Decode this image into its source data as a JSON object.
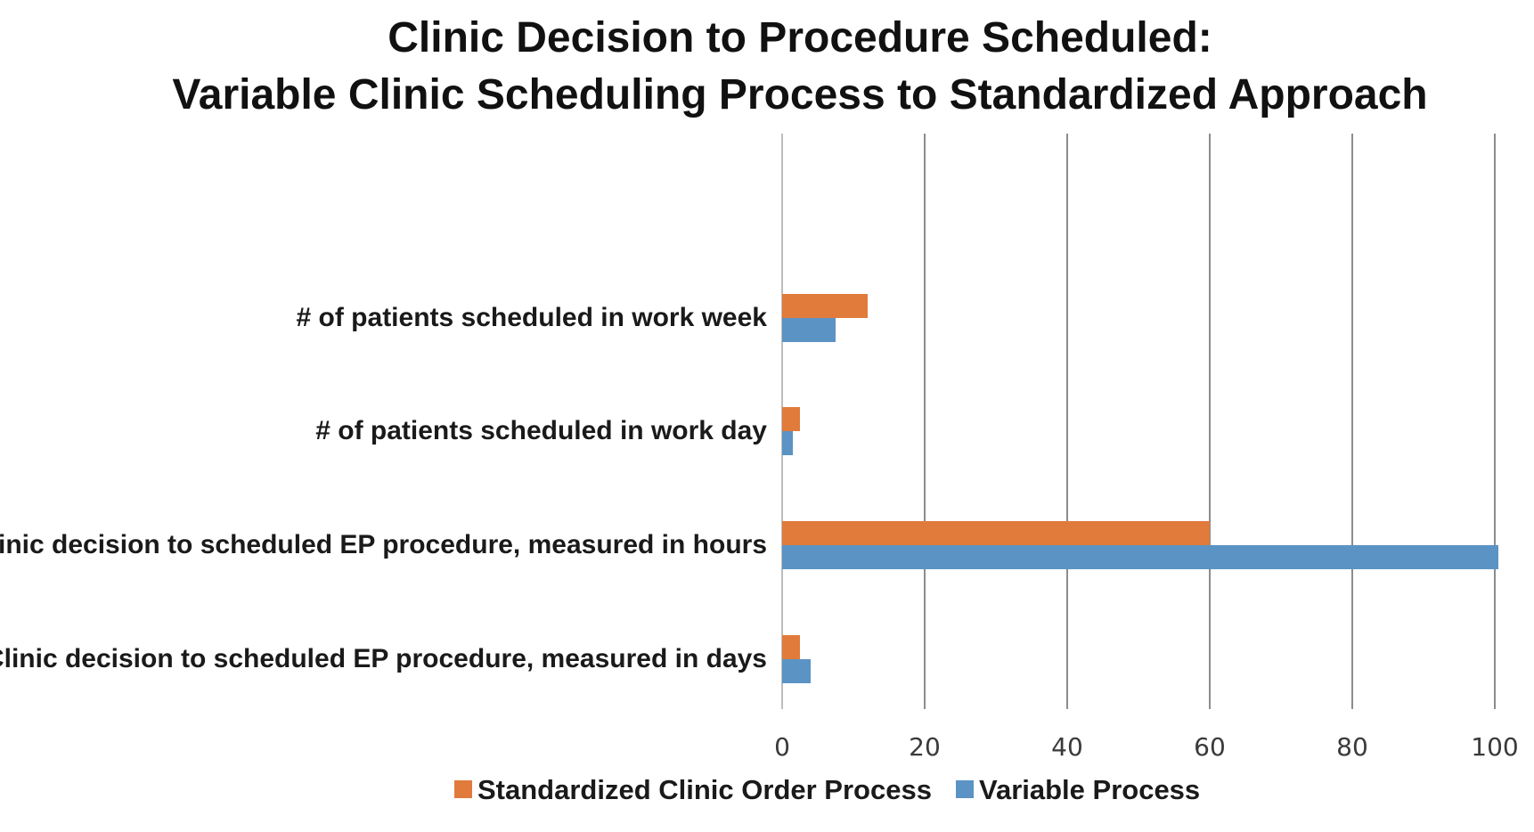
{
  "chart_data": {
    "type": "bar",
    "orientation": "horizontal",
    "title_lines": [
      "Clinic Decision to Procedure Scheduled:",
      "Variable Clinic Scheduling Process to Standardized Approach"
    ],
    "categories": [
      "# of patients scheduled in work week",
      "# of patients scheduled in work day",
      "Clinic decision to scheduled EP procedure, measured in hours",
      "Clinic decision to scheduled EP procedure, measured in days"
    ],
    "series": [
      {
        "name": "Standardized Clinic Order Process",
        "color": "#E07B3C",
        "values": [
          12,
          2.5,
          60,
          2.5
        ]
      },
      {
        "name": "Variable Process",
        "color": "#5B93C4",
        "values": [
          7.5,
          1.5,
          100.5,
          4
        ]
      }
    ],
    "xlim": [
      0,
      100
    ],
    "xticks": [
      "0",
      "20",
      "40",
      "60",
      "80",
      "100"
    ],
    "grid": true,
    "legend_position": "bottom"
  }
}
